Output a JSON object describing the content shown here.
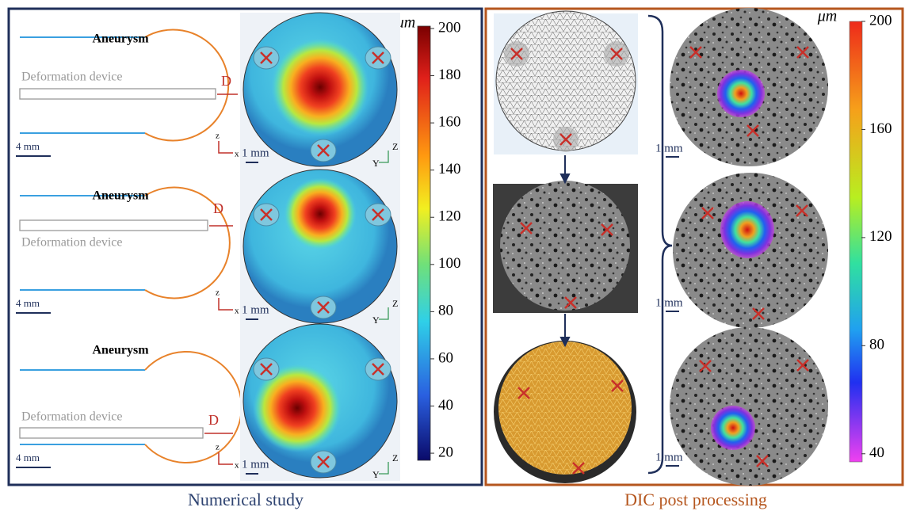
{
  "left_panel": {
    "caption": "Numerical study",
    "colorbar": {
      "unit": "μm",
      "lim": [
        17,
        201
      ],
      "ticks": [
        200,
        180,
        160,
        140,
        120,
        100,
        80,
        60,
        40,
        20
      ]
    },
    "rows": [
      {
        "aneurysm": "Aneurysm",
        "device": "Deformation device",
        "gap": "D",
        "scale_bar": "4 mm",
        "sim_scale_bar": "1 mm",
        "axes_2d": [
          "z",
          "x"
        ],
        "axes_3d": [
          "Z",
          "Y"
        ]
      },
      {
        "aneurysm": "Aneurysm",
        "device": "Deformation device",
        "gap": "D",
        "scale_bar": "4 mm",
        "sim_scale_bar": "1 mm",
        "axes_2d": [
          "z",
          "x"
        ],
        "axes_3d": [
          "Z",
          "Y"
        ]
      },
      {
        "aneurysm": "Aneurysm",
        "device": "Deformation device",
        "gap": "D",
        "scale_bar": "4 mm",
        "sim_scale_bar": "1 mm",
        "axes_2d": [
          "z",
          "x"
        ],
        "axes_3d": [
          "Z",
          "Y"
        ]
      }
    ]
  },
  "right_panel": {
    "caption": "DIC post processing",
    "colorbar": {
      "unit": "μm",
      "lim": [
        37,
        200
      ],
      "ticks": [
        200,
        160,
        120,
        80,
        40
      ]
    },
    "scale_bars": [
      "1 mm",
      "1 mm",
      "1 mm"
    ]
  }
}
